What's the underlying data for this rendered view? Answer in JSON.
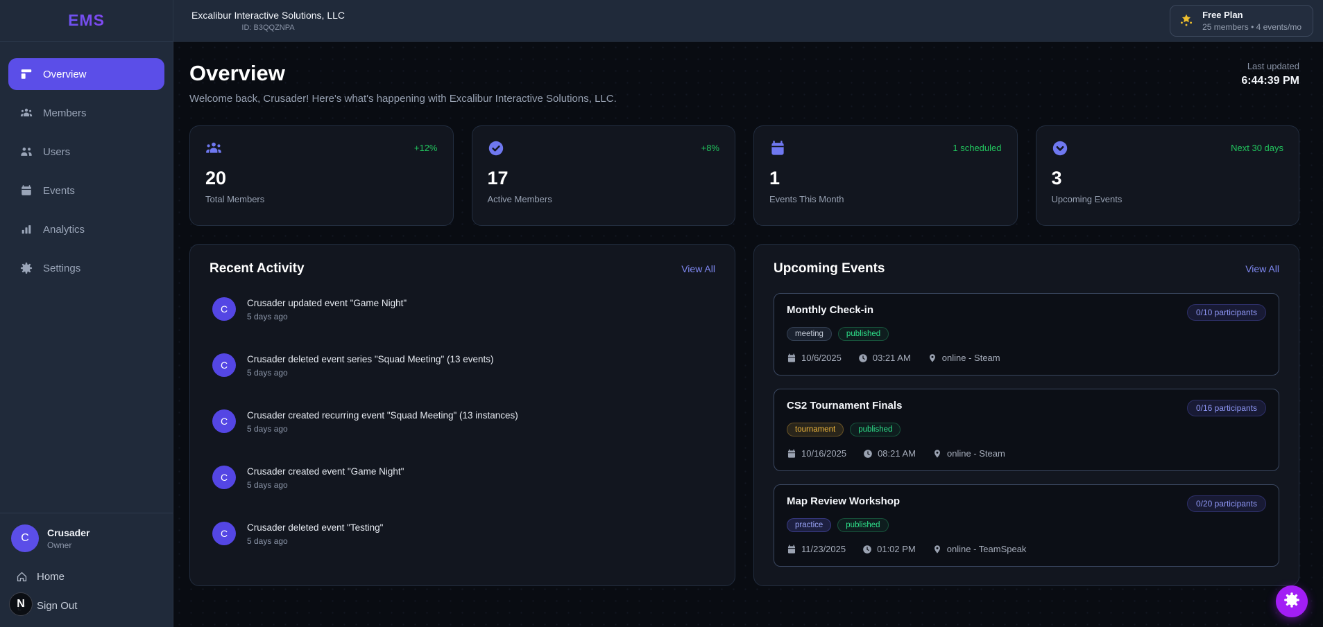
{
  "app": {
    "logo": "EMS"
  },
  "topbar": {
    "org_name": "Excalibur Interactive Solutions, LLC",
    "org_id": "ID: B3QQZNPA",
    "plan": {
      "icon": "crown-icon",
      "name": "Free Plan",
      "details": "25 members  •  4 events/mo"
    }
  },
  "sidebar": {
    "items": [
      {
        "label": "Overview",
        "icon": "dashboard-icon",
        "active": true
      },
      {
        "label": "Members",
        "icon": "members-icon",
        "active": false
      },
      {
        "label": "Users",
        "icon": "users-icon",
        "active": false
      },
      {
        "label": "Events",
        "icon": "calendar-icon",
        "active": false
      },
      {
        "label": "Analytics",
        "icon": "analytics-icon",
        "active": false
      },
      {
        "label": "Settings",
        "icon": "gear-icon",
        "active": false
      }
    ],
    "user": {
      "initial": "C",
      "name": "Crusader",
      "role": "Owner"
    },
    "footer_items": [
      {
        "label": "Home",
        "icon": "home-icon"
      },
      {
        "label": "Sign Out",
        "icon": "signout-icon"
      }
    ]
  },
  "page": {
    "title": "Overview",
    "welcome": "Welcome back, Crusader! Here's what's happening with Excalibur Interactive Solutions, LLC.",
    "last_updated_label": "Last updated",
    "last_updated_time": "6:44:39 PM"
  },
  "stats": [
    {
      "icon": "members-icon",
      "trend": "+12%",
      "value": "20",
      "label": "Total Members"
    },
    {
      "icon": "check-circle-icon",
      "trend": "+8%",
      "value": "17",
      "label": "Active Members"
    },
    {
      "icon": "calendar-solid-icon",
      "trend": "1 scheduled",
      "value": "1",
      "label": "Events This Month"
    },
    {
      "icon": "clock-circle-icon",
      "trend": "Next 30 days",
      "value": "3",
      "label": "Upcoming Events"
    }
  ],
  "recent_activity": {
    "title": "Recent Activity",
    "view_all": "View All",
    "items": [
      {
        "avatar_initial": "C",
        "text": "Crusader updated event \"Game Night\"",
        "time": "5 days ago"
      },
      {
        "avatar_initial": "C",
        "text": "Crusader deleted event series \"Squad Meeting\" (13 events)",
        "time": "5 days ago"
      },
      {
        "avatar_initial": "C",
        "text": "Crusader created recurring event \"Squad Meeting\" (13 instances)",
        "time": "5 days ago"
      },
      {
        "avatar_initial": "C",
        "text": "Crusader created event \"Game Night\"",
        "time": "5 days ago"
      },
      {
        "avatar_initial": "C",
        "text": "Crusader deleted event \"Testing\"",
        "time": "5 days ago"
      }
    ]
  },
  "upcoming_events": {
    "title": "Upcoming Events",
    "view_all": "View All",
    "events": [
      {
        "title": "Monthly Check-in",
        "participants": "0/10 participants",
        "tags": [
          {
            "label": "meeting",
            "type": "neutral"
          },
          {
            "label": "published",
            "type": "green"
          }
        ],
        "date": "10/6/2025",
        "time": "03:21 AM",
        "location": "online - Steam"
      },
      {
        "title": "CS2 Tournament Finals",
        "participants": "0/16 participants",
        "tags": [
          {
            "label": "tournament",
            "type": "amber"
          },
          {
            "label": "published",
            "type": "green"
          }
        ],
        "date": "10/16/2025",
        "time": "08:21 AM",
        "location": "online - Steam"
      },
      {
        "title": "Map Review Workshop",
        "participants": "0/20 participants",
        "tags": [
          {
            "label": "practice",
            "type": "indigo"
          },
          {
            "label": "published",
            "type": "green"
          }
        ],
        "date": "11/23/2025",
        "time": "01:02 PM",
        "location": "online - TeamSpeak"
      }
    ]
  },
  "fab": {
    "icon": "gear-icon"
  },
  "cursor": {
    "label": "N"
  },
  "colors": {
    "accent": "#5b4ee8",
    "success": "#22c55e",
    "fab": "#a21ef5",
    "plan_icon": "#eebf2e",
    "sidebar_bg": "#202a3a",
    "page_bg": "#090c12",
    "card_bg": "#12161f"
  }
}
